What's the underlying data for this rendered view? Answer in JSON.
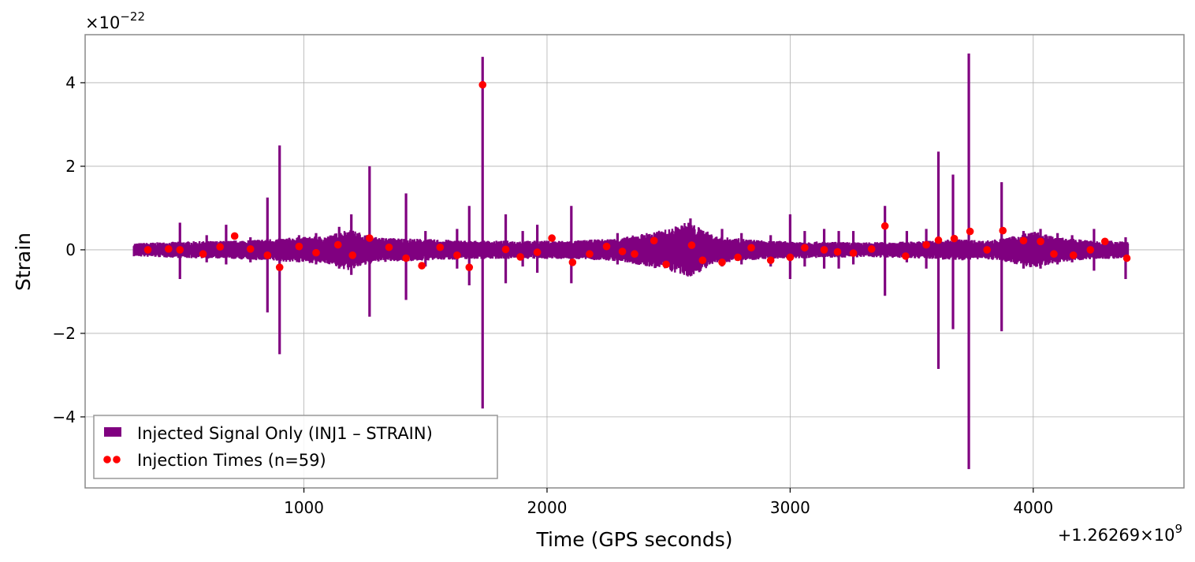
{
  "chart_data": {
    "type": "line",
    "title": "",
    "xlabel": "Time (GPS seconds)",
    "ylabel": "Strain",
    "x_offset_label": "+1.26269×10",
    "x_offset_exp": "9",
    "y_scale_label": "×10",
    "y_scale_exp": "−22",
    "xlim": [
      100,
      4620
    ],
    "ylim": [
      -5.7,
      5.15
    ],
    "xticks": [
      1000,
      2000,
      3000,
      4000
    ],
    "xtick_labels": [
      "1000",
      "2000",
      "3000",
      "4000"
    ],
    "yticks": [
      -4,
      -2,
      0,
      2,
      4
    ],
    "ytick_labels": [
      "−4",
      "−2",
      "0",
      "2",
      "4"
    ],
    "grid": true,
    "legend_position": "lower-left",
    "series": [
      {
        "name": "Injected Signal Only (INJ1 – STRAIN)",
        "kind": "signal",
        "color": "#800080",
        "x_start": 300,
        "x_end": 4390,
        "baseline_envelope": [
          [
            300,
            0.16
          ],
          [
            500,
            0.2
          ],
          [
            700,
            0.22
          ],
          [
            900,
            0.28
          ],
          [
            1100,
            0.34
          ],
          [
            1180,
            0.5
          ],
          [
            1300,
            0.3
          ],
          [
            1500,
            0.26
          ],
          [
            1700,
            0.22
          ],
          [
            1900,
            0.22
          ],
          [
            2100,
            0.22
          ],
          [
            2300,
            0.28
          ],
          [
            2400,
            0.4
          ],
          [
            2500,
            0.5
          ],
          [
            2580,
            0.68
          ],
          [
            2700,
            0.32
          ],
          [
            2900,
            0.22
          ],
          [
            3100,
            0.2
          ],
          [
            3300,
            0.18
          ],
          [
            3500,
            0.2
          ],
          [
            3700,
            0.26
          ],
          [
            3800,
            0.22
          ],
          [
            3900,
            0.3
          ],
          [
            4000,
            0.45
          ],
          [
            4100,
            0.3
          ],
          [
            4250,
            0.22
          ],
          [
            4390,
            0.22
          ]
        ],
        "spikes": [
          [
            490,
            0.65,
            -0.7
          ],
          [
            600,
            0.35,
            -0.3
          ],
          [
            680,
            0.6,
            -0.35
          ],
          [
            780,
            0.3,
            -0.3
          ],
          [
            850,
            1.25,
            -1.5
          ],
          [
            900,
            2.5,
            -2.5
          ],
          [
            980,
            0.35,
            -0.3
          ],
          [
            1050,
            0.4,
            -0.35
          ],
          [
            1145,
            0.55,
            -0.45
          ],
          [
            1195,
            0.85,
            -0.6
          ],
          [
            1270,
            2.0,
            -1.6
          ],
          [
            1420,
            1.35,
            -1.2
          ],
          [
            1500,
            0.45,
            -0.4
          ],
          [
            1630,
            0.5,
            -0.45
          ],
          [
            1680,
            1.05,
            -0.85
          ],
          [
            1735,
            4.62,
            -3.8
          ],
          [
            1830,
            0.85,
            -0.8
          ],
          [
            1900,
            0.45,
            -0.4
          ],
          [
            1960,
            0.6,
            -0.55
          ],
          [
            2100,
            1.05,
            -0.8
          ],
          [
            2290,
            0.4,
            -0.35
          ],
          [
            2400,
            0.35,
            -0.35
          ],
          [
            2590,
            0.75,
            -0.6
          ],
          [
            2720,
            0.5,
            -0.4
          ],
          [
            2800,
            0.4,
            -0.35
          ],
          [
            2920,
            0.35,
            -0.4
          ],
          [
            3000,
            0.85,
            -0.7
          ],
          [
            3060,
            0.45,
            -0.4
          ],
          [
            3140,
            0.5,
            -0.45
          ],
          [
            3200,
            0.45,
            -0.45
          ],
          [
            3260,
            0.45,
            -0.35
          ],
          [
            3390,
            1.05,
            -1.1
          ],
          [
            3480,
            0.45,
            -0.3
          ],
          [
            3560,
            0.5,
            -0.45
          ],
          [
            3610,
            2.35,
            -2.85
          ],
          [
            3670,
            1.8,
            -1.9
          ],
          [
            3735,
            4.7,
            -5.25
          ],
          [
            3870,
            1.62,
            -1.95
          ],
          [
            3960,
            0.45,
            -0.45
          ],
          [
            4030,
            0.5,
            -0.45
          ],
          [
            4100,
            0.4,
            -0.35
          ],
          [
            4160,
            0.35,
            -0.3
          ],
          [
            4250,
            0.5,
            -0.5
          ],
          [
            4380,
            0.3,
            -0.7
          ]
        ]
      },
      {
        "name": "Injection Times (n=59)",
        "kind": "points",
        "color": "#ff0000",
        "points": [
          [
            358,
            0.0
          ],
          [
            443,
            0.02
          ],
          [
            490,
            0.0
          ],
          [
            585,
            -0.1
          ],
          [
            655,
            0.07
          ],
          [
            715,
            0.33
          ],
          [
            780,
            0.02
          ],
          [
            850,
            -0.13
          ],
          [
            900,
            -0.42
          ],
          [
            980,
            0.08
          ],
          [
            1050,
            -0.07
          ],
          [
            1140,
            0.12
          ],
          [
            1200,
            -0.13
          ],
          [
            1270,
            0.28
          ],
          [
            1350,
            0.06
          ],
          [
            1420,
            -0.2
          ],
          [
            1485,
            -0.38
          ],
          [
            1560,
            0.06
          ],
          [
            1630,
            -0.13
          ],
          [
            1680,
            -0.42
          ],
          [
            1735,
            3.95
          ],
          [
            1830,
            0.01
          ],
          [
            1890,
            -0.17
          ],
          [
            1960,
            -0.06
          ],
          [
            2020,
            0.28
          ],
          [
            2105,
            -0.3
          ],
          [
            2175,
            -0.1
          ],
          [
            2245,
            0.08
          ],
          [
            2310,
            -0.04
          ],
          [
            2360,
            -0.1
          ],
          [
            2440,
            0.22
          ],
          [
            2490,
            -0.35
          ],
          [
            2595,
            0.11
          ],
          [
            2640,
            -0.25
          ],
          [
            2720,
            -0.3
          ],
          [
            2785,
            -0.18
          ],
          [
            2840,
            0.05
          ],
          [
            2920,
            -0.25
          ],
          [
            3000,
            -0.18
          ],
          [
            3060,
            0.05
          ],
          [
            3140,
            0.0
          ],
          [
            3195,
            -0.05
          ],
          [
            3260,
            -0.08
          ],
          [
            3335,
            0.02
          ],
          [
            3390,
            0.57
          ],
          [
            3475,
            -0.15
          ],
          [
            3560,
            0.12
          ],
          [
            3610,
            0.23
          ],
          [
            3675,
            0.27
          ],
          [
            3740,
            0.44
          ],
          [
            3810,
            0.0
          ],
          [
            3875,
            0.46
          ],
          [
            3960,
            0.22
          ],
          [
            4030,
            0.2
          ],
          [
            4085,
            -0.1
          ],
          [
            4165,
            -0.13
          ],
          [
            4235,
            0.0
          ],
          [
            4295,
            0.2
          ],
          [
            4385,
            -0.2
          ]
        ]
      }
    ]
  }
}
